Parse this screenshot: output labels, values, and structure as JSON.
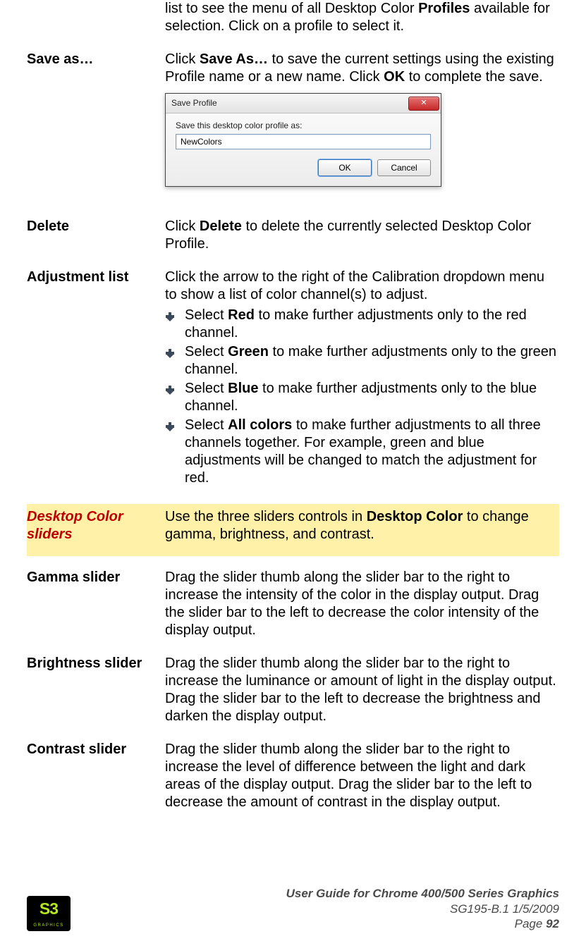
{
  "intro": {
    "text_before": "list to see the menu of all Desktop Color ",
    "bold": "Profiles",
    "text_after": " available for selection. Click on a profile to select it."
  },
  "save_as": {
    "label": "Save as…",
    "p1a": "Click ",
    "p1b": "Save As…",
    "p1c": " to save the current settings using the existing Profile name or a new name. Click ",
    "p1d": "OK",
    "p1e": " to complete the save."
  },
  "dialog": {
    "title": "Save Profile",
    "close_glyph": "✕",
    "label": "Save this desktop color profile as:",
    "value": "NewColors",
    "ok": "OK",
    "cancel": "Cancel"
  },
  "delete": {
    "label": "Delete",
    "t1": "Click ",
    "b1": "Delete",
    "t2": " to delete the currently selected Desktop Color Profile."
  },
  "adjust": {
    "label": "Adjustment list",
    "intro": "Click the arrow to the right of the Calibration dropdown menu to show a list of color channel(s) to adjust.",
    "items": [
      {
        "pre": "Select ",
        "bold": "Red",
        "post": " to make further adjustments only to the red channel."
      },
      {
        "pre": "Select ",
        "bold": "Green",
        "post": " to make further adjustments only to the green channel."
      },
      {
        "pre": "Select ",
        "bold": "Blue",
        "post": " to make further adjustments only to the blue channel."
      },
      {
        "pre": "Select ",
        "bold": "All colors",
        "post": " to make further adjustments to all three channels together. For example, green and blue adjustments will be changed to match the adjustment for red."
      }
    ]
  },
  "sliders_header": {
    "label": "Desktop Color sliders",
    "t1": "Use the three sliders controls in ",
    "b1": "Desktop Color",
    "t2": " to change gamma, brightness, and contrast."
  },
  "gamma": {
    "label": "Gamma slider",
    "text": "Drag the slider thumb along the slider bar to the right to increase the intensity of the color in the display output. Drag the slider bar to the left to decrease the color intensity of the display output."
  },
  "brightness": {
    "label": "Brightness slider",
    "text": "Drag the slider thumb along the slider bar to the right to increase the luminance or amount of light in the display output. Drag the slider bar to the left to decrease the brightness and darken the display output."
  },
  "contrast": {
    "label": "Contrast slider",
    "text": "Drag the slider thumb along the slider bar to the right to increase the level of difference between the light and dark areas of the display output. Drag the slider bar to the left to decrease the amount of contrast in the display output."
  },
  "footer": {
    "line1": "User Guide for Chrome 400/500 Series Graphics",
    "line2": "SG195-B.1   1/5/2009",
    "page_label": "Page ",
    "page_num": "92",
    "logo_main": "S3",
    "logo_sub": "GRAPHICS"
  },
  "colors": {
    "highlight_bg": "#fff2a8",
    "highlight_label": "#c00000",
    "logo_bg": "#000000",
    "logo_fg": "#b6e61d",
    "footer_text": "#4a4a4a"
  }
}
